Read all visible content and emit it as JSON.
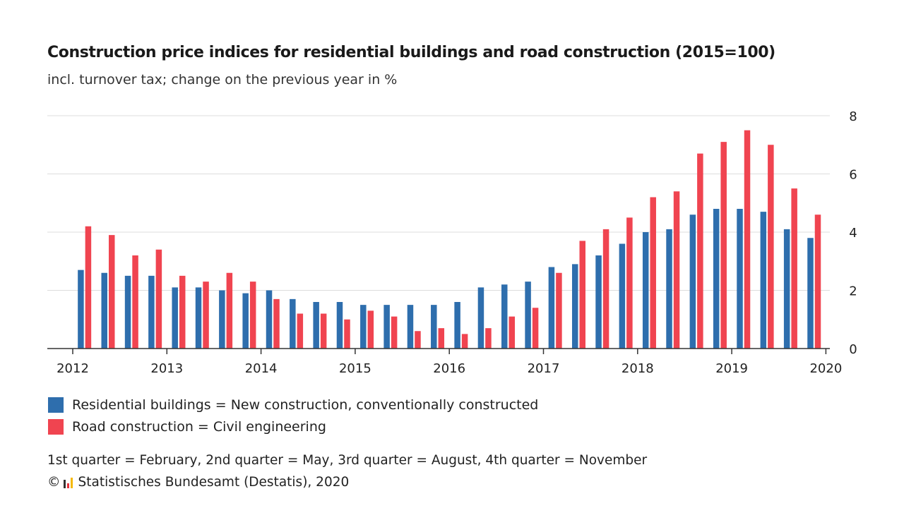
{
  "chart_data": {
    "type": "bar",
    "title": "Construction price indices for residential buildings and road construction (2015=100)",
    "subtitle": "incl. turnover tax; change on the previous year in %",
    "xlabel": "",
    "ylabel": "",
    "ylim": [
      0,
      8
    ],
    "yticks": [
      "0",
      "2",
      "4",
      "6",
      "8"
    ],
    "xticks": [
      "2012",
      "2013",
      "2014",
      "2015",
      "2016",
      "2017",
      "2018",
      "2019",
      "2020"
    ],
    "grid": true,
    "categories": [
      "2012 Q1",
      "2012 Q2",
      "2012 Q3",
      "2012 Q4",
      "2013 Q1",
      "2013 Q2",
      "2013 Q3",
      "2013 Q4",
      "2014 Q1",
      "2014 Q2",
      "2014 Q3",
      "2014 Q4",
      "2015 Q1",
      "2015 Q2",
      "2015 Q3",
      "2015 Q4",
      "2016 Q1",
      "2016 Q2",
      "2016 Q3",
      "2016 Q4",
      "2017 Q1",
      "2017 Q2",
      "2017 Q3",
      "2017 Q4",
      "2018 Q1",
      "2018 Q2",
      "2018 Q3",
      "2018 Q4",
      "2019 Q1",
      "2019 Q2",
      "2019 Q3",
      "2019 Q4"
    ],
    "series": [
      {
        "name": "Residential buildings = New construction, conventionally constructed",
        "color": "#2e6ead",
        "values": [
          2.7,
          2.6,
          2.5,
          2.5,
          2.1,
          2.1,
          2.0,
          1.9,
          2.0,
          1.7,
          1.6,
          1.6,
          1.5,
          1.5,
          1.5,
          1.5,
          1.6,
          2.1,
          2.2,
          2.3,
          2.8,
          2.9,
          3.2,
          3.6,
          4.0,
          4.1,
          4.6,
          4.8,
          4.8,
          4.7,
          4.1,
          3.8
        ]
      },
      {
        "name": "Road construction = Civil engineering",
        "color": "#f04450",
        "values": [
          4.2,
          3.9,
          3.2,
          3.4,
          2.5,
          2.3,
          2.6,
          2.3,
          1.7,
          1.2,
          1.2,
          1.0,
          1.3,
          1.1,
          0.6,
          0.7,
          0.5,
          0.7,
          1.1,
          1.4,
          2.6,
          3.7,
          4.1,
          4.5,
          5.2,
          5.4,
          6.7,
          7.1,
          7.5,
          7.0,
          5.5,
          4.6
        ]
      }
    ]
  },
  "legend": {
    "residential": "Residential buildings = New construction, conventionally constructed",
    "road": "Road construction = Civil engineering"
  },
  "footnote": "1st quarter = February, 2nd quarter = May, 3rd quarter = August, 4th quarter = November",
  "source": {
    "copyright": "©",
    "text": "Statistisches Bundesamt (Destatis), 2020"
  },
  "colors": {
    "residential": "#2e6ead",
    "road": "#f04450",
    "grid": "#dddddd",
    "axis": "#333333",
    "logo_dark": "#333333",
    "logo_red": "#e8323c",
    "logo_yellow": "#f5b800"
  }
}
